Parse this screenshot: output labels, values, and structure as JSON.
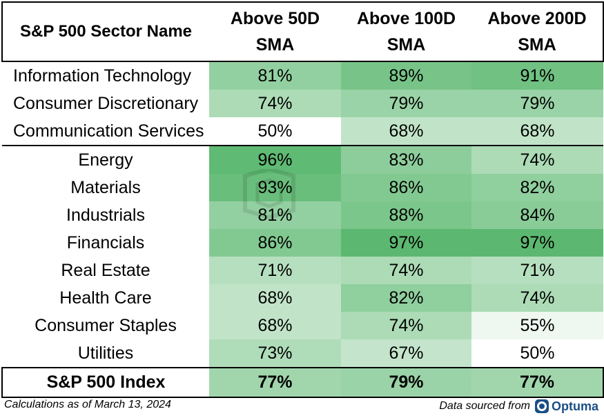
{
  "chart_data": {
    "type": "table",
    "columns": [
      "S&P 500 Sector Name",
      "Above 50D SMA",
      "Above 100D SMA",
      "Above 200D SMA"
    ],
    "header_lines": [
      [
        "S&P 500 Sector Name"
      ],
      [
        "Above 50D",
        "SMA"
      ],
      [
        "Above 100D",
        "SMA"
      ],
      [
        "Above 200D",
        "SMA"
      ]
    ],
    "rows": [
      {
        "name": "Information Technology",
        "values": [
          81,
          89,
          91
        ]
      },
      {
        "name": "Consumer Discretionary",
        "values": [
          74,
          79,
          79
        ]
      },
      {
        "name": "Communication Services",
        "values": [
          50,
          68,
          68
        ]
      },
      {
        "name": "Energy",
        "values": [
          96,
          83,
          74
        ]
      },
      {
        "name": "Materials",
        "values": [
          93,
          86,
          82
        ]
      },
      {
        "name": "Industrials",
        "values": [
          81,
          88,
          84
        ]
      },
      {
        "name": "Financials",
        "values": [
          86,
          97,
          97
        ]
      },
      {
        "name": "Real Estate",
        "values": [
          71,
          74,
          71
        ]
      },
      {
        "name": "Health Care",
        "values": [
          68,
          82,
          74
        ]
      },
      {
        "name": "Consumer Staples",
        "values": [
          68,
          74,
          55
        ]
      },
      {
        "name": "Utilities",
        "values": [
          73,
          67,
          50
        ]
      }
    ],
    "total": {
      "name": "S&P 500 Index",
      "values": [
        77,
        79,
        77
      ]
    },
    "value_unit": "%",
    "color_scale": {
      "low_value": 50,
      "high_value": 97,
      "low_color": "#ffffff",
      "high_color": "#5cb870"
    }
  },
  "footer": {
    "left_note": "Calculations as of March 13, 2024",
    "source_label": "Data sourced from",
    "source_name": "Optuma"
  }
}
